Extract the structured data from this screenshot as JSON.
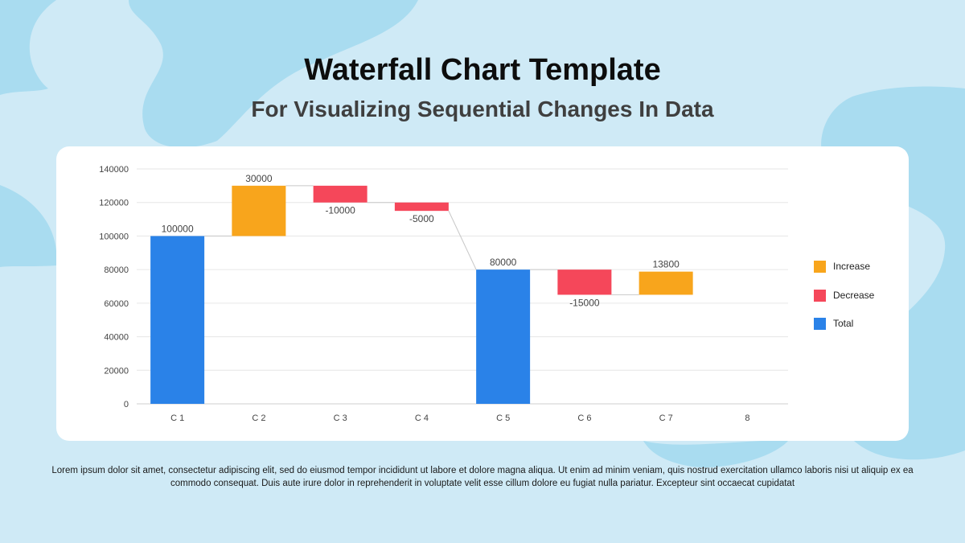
{
  "page": {
    "title": "Waterfall Chart Template",
    "subtitle": "For Visualizing Sequential Changes In Data",
    "footer_text": "Lorem ipsum dolor sit amet, consectetur adipiscing elit, sed do eiusmod tempor incididunt ut labore et dolore magna aliqua. Ut enim ad minim veniam, quis nostrud exercitation ullamco laboris nisi ut aliquip ex ea commodo consequat. Duis aute irure dolor in reprehenderit in voluptate velit esse cillum dolore eu fugiat nulla pariatur. Excepteur sint occaecat cupidatat"
  },
  "colors": {
    "background": "#cfeaf6",
    "blob": "#a9dcf0",
    "increase": "#f8a51c",
    "decrease": "#f5475a",
    "total": "#2a82e8",
    "gridline": "#e6e6e6",
    "connector": "#c8c8c8"
  },
  "chart_data": {
    "type": "bar",
    "subtype": "waterfall",
    "categories": [
      "C 1",
      "C 2",
      "C 3",
      "C 4",
      "C 5",
      "C 6",
      "C 7",
      "8"
    ],
    "values": [
      100000,
      30000,
      -10000,
      -5000,
      80000,
      -15000,
      13800,
      null
    ],
    "kinds": [
      "total",
      "increase",
      "decrease",
      "decrease",
      "total",
      "decrease",
      "increase",
      null
    ],
    "data_labels": [
      "100000",
      "30000",
      "-10000",
      "-5000",
      "80000",
      "-15000",
      "13800",
      ""
    ],
    "ylim": [
      0,
      140000
    ],
    "yticks": [
      0,
      20000,
      40000,
      60000,
      80000,
      100000,
      120000,
      140000
    ],
    "ytick_labels": [
      "0",
      "20000",
      "40000",
      "60000",
      "80000",
      "100000",
      "120000",
      "140000"
    ],
    "grid": true,
    "legend_position": "right",
    "legend": [
      {
        "name": "Increase",
        "kind": "increase"
      },
      {
        "name": "Decrease",
        "kind": "decrease"
      },
      {
        "name": "Total",
        "kind": "total"
      }
    ]
  }
}
